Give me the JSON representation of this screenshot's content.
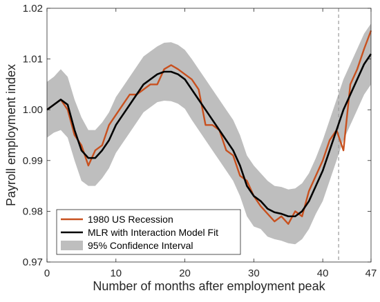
{
  "chart_data": {
    "type": "line",
    "xlabel": "Number of months after employment peak",
    "ylabel": "Payroll employment index",
    "xlim": [
      0,
      47
    ],
    "ylim": [
      0.97,
      1.02
    ],
    "x_ticks": [
      0,
      10,
      20,
      30,
      40,
      47
    ],
    "x_tick_labels": [
      "0",
      "10",
      "20",
      "30",
      "40",
      "47"
    ],
    "y_ticks": [
      0.97,
      0.98,
      0.99,
      1.0,
      1.01,
      1.02
    ],
    "y_tick_labels": [
      "0.97",
      "0.98",
      "0.99",
      "1.00",
      "1.01",
      "1.02"
    ],
    "grid": false,
    "legend_position": "bottom-left",
    "reference_line": {
      "x": 42.3,
      "style": "dashed",
      "color": "#999999"
    },
    "series": [
      {
        "name": "1980 US Recession",
        "color": "#C8501E",
        "x": [
          0,
          1,
          2,
          3,
          4,
          5,
          6,
          7,
          8,
          9,
          10,
          11,
          12,
          13,
          14,
          15,
          16,
          17,
          18,
          19,
          20,
          21,
          22,
          23,
          24,
          25,
          26,
          27,
          28,
          29,
          30,
          31,
          32,
          33,
          34,
          35,
          36,
          37,
          38,
          39,
          40,
          41,
          42,
          43,
          44,
          45,
          46,
          47
        ],
        "values": [
          1.0,
          1.001,
          1.002,
          1.0,
          0.995,
          0.993,
          0.989,
          0.992,
          0.993,
          0.997,
          0.999,
          1.001,
          1.003,
          1.003,
          1.004,
          1.005,
          1.005,
          1.008,
          1.0088,
          1.008,
          1.007,
          1.006,
          1.004,
          0.997,
          0.997,
          0.996,
          0.992,
          0.991,
          0.987,
          0.986,
          0.983,
          0.981,
          0.9795,
          0.978,
          0.979,
          0.9775,
          0.98,
          0.979,
          0.984,
          0.987,
          0.99,
          0.994,
          0.996,
          0.992,
          1.005,
          1.008,
          1.012,
          1.0156
        ]
      },
      {
        "name": "MLR with Interaction Model Fit",
        "color": "#000000",
        "x": [
          0,
          1,
          2,
          3,
          4,
          5,
          6,
          7,
          8,
          9,
          10,
          11,
          12,
          13,
          14,
          15,
          16,
          17,
          18,
          19,
          20,
          21,
          22,
          23,
          24,
          25,
          26,
          27,
          28,
          29,
          30,
          31,
          32,
          33,
          34,
          35,
          36,
          37,
          38,
          39,
          40,
          41,
          42,
          43,
          44,
          45,
          46,
          47
        ],
        "values": [
          1.0,
          1.001,
          1.002,
          1.001,
          0.996,
          0.992,
          0.9905,
          0.9905,
          0.992,
          0.994,
          0.997,
          0.999,
          1.001,
          1.003,
          1.005,
          1.006,
          1.007,
          1.0075,
          1.0075,
          1.007,
          1.006,
          1.004,
          1.002,
          1.0,
          0.998,
          0.996,
          0.994,
          0.992,
          0.989,
          0.985,
          0.983,
          0.982,
          0.9805,
          0.9798,
          0.9795,
          0.979,
          0.979,
          0.98,
          0.982,
          0.985,
          0.988,
          0.992,
          0.996,
          1.0,
          1.003,
          1.006,
          1.009,
          1.011
        ]
      }
    ],
    "band": {
      "name": "95% Confidence Interval",
      "color": "#BEBEBE",
      "x": [
        0,
        1,
        2,
        3,
        4,
        5,
        6,
        7,
        8,
        9,
        10,
        11,
        12,
        13,
        14,
        15,
        16,
        17,
        18,
        19,
        20,
        21,
        22,
        23,
        24,
        25,
        26,
        27,
        28,
        29,
        30,
        31,
        32,
        33,
        34,
        35,
        36,
        37,
        38,
        39,
        40,
        41,
        42,
        43,
        44,
        45,
        46,
        47
      ],
      "upper": [
        1.0055,
        1.0065,
        1.008,
        1.0065,
        1.002,
        0.9985,
        0.996,
        0.996,
        0.9975,
        0.9995,
        1.0025,
        1.0045,
        1.0065,
        1.0085,
        1.0105,
        1.0115,
        1.0125,
        1.0132,
        1.0133,
        1.0128,
        1.0118,
        1.01,
        1.008,
        1.006,
        1.004,
        1.002,
        1.0,
        0.998,
        0.995,
        0.991,
        0.989,
        0.9875,
        0.986,
        0.985,
        0.9848,
        0.9843,
        0.9845,
        0.9855,
        0.9875,
        0.9905,
        0.994,
        0.998,
        1.002,
        1.006,
        1.009,
        1.012,
        1.015,
        1.017
      ],
      "lower": [
        0.9945,
        0.9955,
        0.996,
        0.9945,
        0.99,
        0.986,
        0.985,
        0.985,
        0.9865,
        0.9885,
        0.9915,
        0.9935,
        0.9955,
        0.9975,
        0.9995,
        1.0005,
        1.0015,
        1.0018,
        1.0017,
        1.0012,
        1.0002,
        0.998,
        0.996,
        0.994,
        0.992,
        0.99,
        0.988,
        0.986,
        0.983,
        0.979,
        0.977,
        0.9765,
        0.975,
        0.9745,
        0.9742,
        0.9737,
        0.9735,
        0.9745,
        0.9765,
        0.9795,
        0.982,
        0.986,
        0.99,
        0.994,
        0.997,
        1.0,
        1.003,
        1.005
      ]
    }
  }
}
